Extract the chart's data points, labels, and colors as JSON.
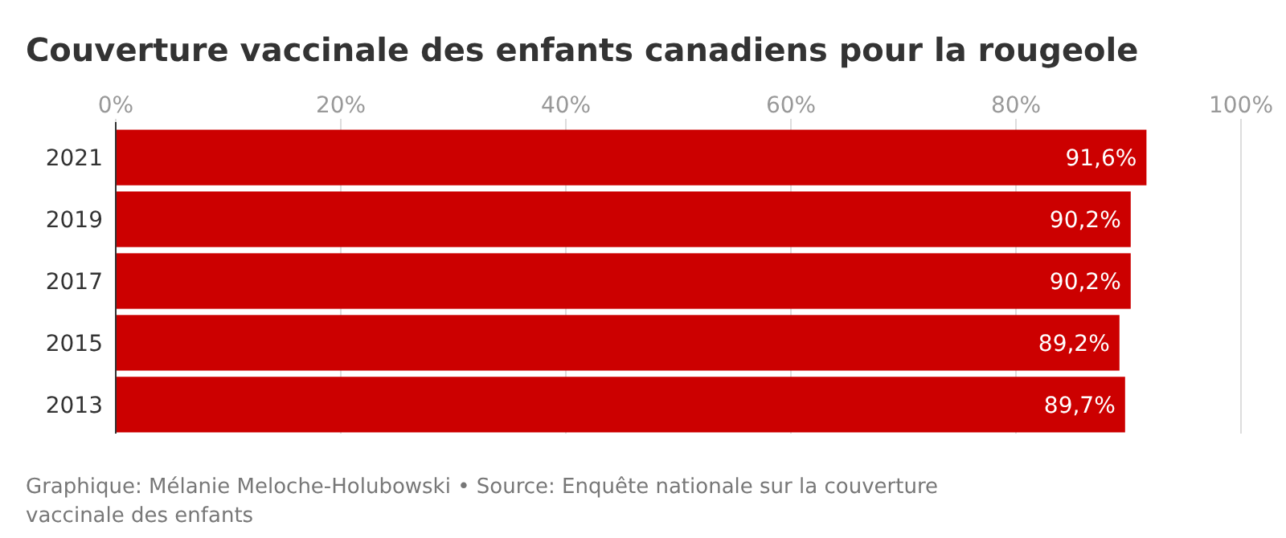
{
  "chart_data": {
    "type": "bar",
    "orientation": "horizontal",
    "title": "Couverture vaccinale des enfants canadiens pour la rougeole",
    "categories": [
      "2021",
      "2019",
      "2017",
      "2015",
      "2013"
    ],
    "values": [
      91.6,
      90.2,
      90.2,
      89.2,
      89.7
    ],
    "value_labels": [
      "91,6%",
      "90,2%",
      "90,2%",
      "89,2%",
      "89,7%"
    ],
    "color": "#cc0000",
    "xlim": [
      0,
      100
    ],
    "xticks": [
      {
        "value": 0,
        "label": "0%"
      },
      {
        "value": 20,
        "label": "20%"
      },
      {
        "value": 40,
        "label": "40%"
      },
      {
        "value": 60,
        "label": "60%"
      },
      {
        "value": 80,
        "label": "80%"
      },
      {
        "value": 100,
        "label": "100%"
      }
    ],
    "grid": "x",
    "annotations": [
      "Graphique: Mélanie Meloche-Holubowski • Source: Enquête nationale sur la couverture vaccinale des enfants"
    ]
  }
}
